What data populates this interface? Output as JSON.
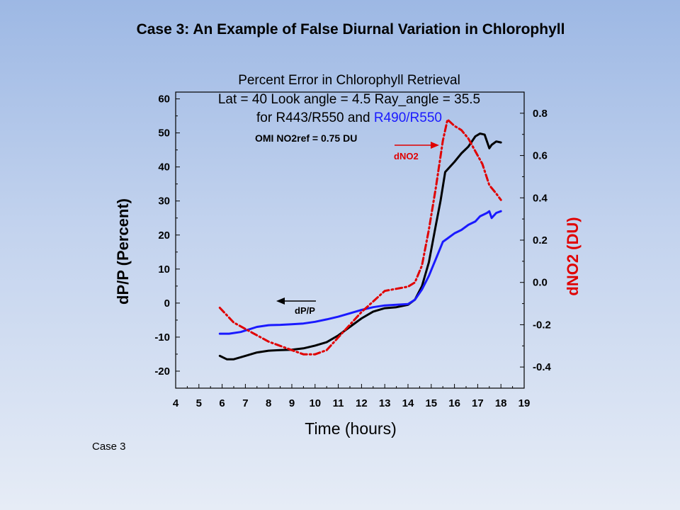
{
  "slide": {
    "title": "Case 3: An Example of False Diurnal Variation in Chlorophyll",
    "footer": "Case 3"
  },
  "chart_data": {
    "type": "line",
    "title_lines": [
      "Percent Error in Chlorophyll Retrieval",
      "Lat = 40 Look angle = 4.5  Ray_angle = 35.5"
    ],
    "title_line3": {
      "prefix": "for R443/R550  and ",
      "highlight": "R490/R550"
    },
    "note": "OMI NO2ref = 0.75 DU",
    "xlabel": "Time (hours)",
    "ylabel": "dP/P (Percent)",
    "y2label": "dNO2 (DU)",
    "xlim": [
      4,
      19
    ],
    "ylim": [
      -25,
      62
    ],
    "y2lim": [
      -0.5,
      0.9
    ],
    "xticks": [
      4,
      5,
      6,
      7,
      8,
      9,
      10,
      11,
      12,
      13,
      14,
      15,
      16,
      17,
      18,
      19
    ],
    "yticks": [
      -20,
      -10,
      0,
      10,
      20,
      30,
      40,
      50,
      60
    ],
    "y2ticks": [
      -0.4,
      -0.2,
      0.0,
      0.2,
      0.4,
      0.6,
      0.8
    ],
    "y2tick_labels": [
      "-0.4",
      "-0.2",
      "0.0",
      "0.2",
      "0.4",
      "0.6",
      "0.8"
    ],
    "annotations": [
      {
        "text": "dNO2",
        "color": "#e00000"
      },
      {
        "text": "dP/P",
        "color": "#000000"
      }
    ],
    "series": [
      {
        "axis": "left",
        "color": "#000000",
        "dash": "",
        "x": [
          5.9,
          6.2,
          6.5,
          7,
          7.5,
          8,
          8.5,
          9,
          9.5,
          10,
          10.5,
          11,
          11.5,
          12,
          12.5,
          13,
          13.5,
          14,
          14.3,
          14.6,
          14.9,
          15.2,
          15.4,
          15.6,
          15.8,
          16,
          16.3,
          16.6,
          16.9,
          17.1,
          17.3,
          17.5,
          17.6,
          17.8,
          18.0
        ],
        "y": [
          -15.5,
          -16.5,
          -16.5,
          -15.5,
          -14.5,
          -14,
          -13.8,
          -13.7,
          -13.3,
          -12.5,
          -11.5,
          -9.5,
          -7,
          -4.5,
          -2.5,
          -1.5,
          -1.2,
          -0.5,
          1,
          5,
          12,
          23,
          30,
          38.5,
          40,
          41.5,
          44,
          46,
          49,
          49.8,
          49.5,
          45.5,
          46.5,
          47.5,
          47.2
        ]
      },
      {
        "axis": "left",
        "color": "#1a1aff",
        "dash": "",
        "x": [
          5.9,
          6.3,
          6.8,
          7.5,
          8,
          8.5,
          9,
          9.5,
          10,
          10.5,
          11,
          11.5,
          12,
          12.5,
          13,
          13.5,
          14,
          14.3,
          14.6,
          14.9,
          15.2,
          15.5,
          15.7,
          16,
          16.3,
          16.6,
          16.9,
          17.1,
          17.4,
          17.5,
          17.6,
          17.8,
          18.0
        ],
        "y": [
          -9,
          -9,
          -8.5,
          -7,
          -6.5,
          -6.4,
          -6.2,
          -6,
          -5.5,
          -4.8,
          -4,
          -3,
          -2,
          -1.2,
          -0.7,
          -0.5,
          -0.3,
          1,
          4,
          8,
          13,
          18,
          19,
          20.5,
          21.5,
          23,
          24,
          25.5,
          26.5,
          27,
          25,
          26.5,
          27
        ]
      },
      {
        "axis": "right",
        "color": "#e00000",
        "dash": "9,4,2,4",
        "x": [
          5.9,
          6.5,
          7,
          7.5,
          8,
          8.5,
          9,
          9.5,
          10,
          10.5,
          11,
          11.5,
          12,
          12.5,
          13,
          13.5,
          14,
          14.3,
          14.6,
          14.9,
          15.2,
          15.5,
          15.7,
          16,
          16.3,
          16.6,
          16.9,
          17.2,
          17.5,
          17.8,
          18.0
        ],
        "y": [
          -0.12,
          -0.19,
          -0.22,
          -0.25,
          -0.28,
          -0.3,
          -0.32,
          -0.34,
          -0.34,
          -0.32,
          -0.26,
          -0.2,
          -0.14,
          -0.09,
          -0.04,
          -0.03,
          -0.02,
          0.0,
          0.08,
          0.25,
          0.45,
          0.67,
          0.77,
          0.74,
          0.72,
          0.68,
          0.62,
          0.56,
          0.46,
          0.42,
          0.39
        ]
      }
    ]
  }
}
